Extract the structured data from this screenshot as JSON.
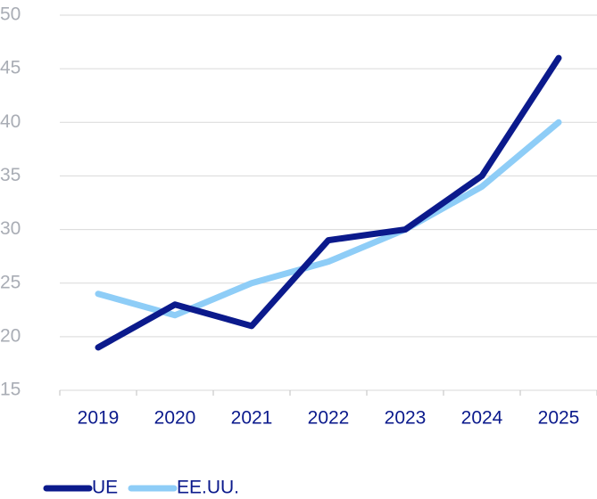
{
  "chart_data": {
    "type": "line",
    "categories": [
      "2019",
      "2020",
      "2021",
      "2022",
      "2023",
      "2024",
      "2025"
    ],
    "series": [
      {
        "name": "UE",
        "color": "#0b1a8c",
        "values": [
          19,
          23,
          21,
          29,
          30,
          35,
          46
        ]
      },
      {
        "name": "EE.UU.",
        "color": "#8ecdf7",
        "values": [
          24,
          22,
          25,
          27,
          30,
          34,
          40
        ]
      }
    ],
    "ylim": [
      15,
      50
    ],
    "yticks": [
      15,
      20,
      25,
      30,
      35,
      40,
      45,
      50
    ],
    "grid": true
  }
}
